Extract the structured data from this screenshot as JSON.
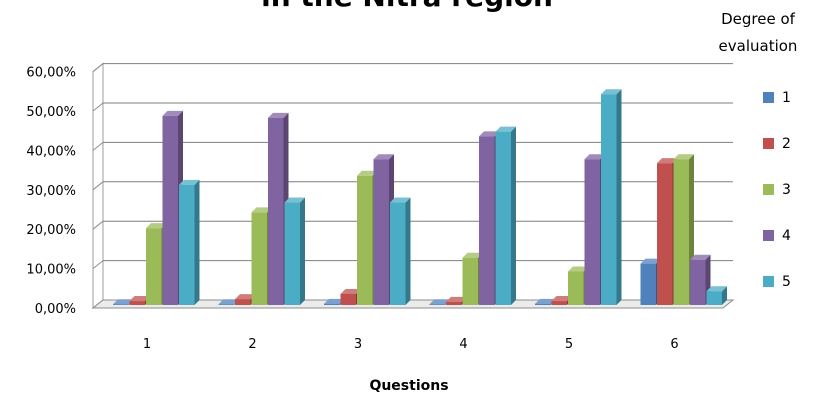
{
  "chart_data": {
    "type": "bar",
    "title": "in the Nitra region",
    "xlabel": "Questions",
    "ylabel": "",
    "categories": [
      "1",
      "2",
      "3",
      "4",
      "5",
      "6"
    ],
    "yticks": [
      "0,00%",
      "10,00%",
      "20,00%",
      "30,00%",
      "40,00%",
      "50,00%",
      "60,00%"
    ],
    "ylim": [
      0,
      60
    ],
    "legend_title": [
      "Degree of",
      "evaluation"
    ],
    "legend_position": "right",
    "grid": true,
    "series": [
      {
        "name": "1",
        "color": "#4f81bd",
        "values": [
          0.2,
          0.2,
          0.3,
          0.2,
          0.3,
          10.5
        ]
      },
      {
        "name": "2",
        "color": "#c0504d",
        "values": [
          1.0,
          1.5,
          2.8,
          0.8,
          1.0,
          36.0
        ]
      },
      {
        "name": "3",
        "color": "#9bbb59",
        "values": [
          19.5,
          23.5,
          32.8,
          12.0,
          8.5,
          37.0
        ]
      },
      {
        "name": "4",
        "color": "#8064a2",
        "values": [
          48.0,
          47.5,
          37.0,
          42.8,
          37.0,
          11.5
        ]
      },
      {
        "name": "5",
        "color": "#4bacc6",
        "values": [
          30.5,
          26.0,
          26.0,
          44.0,
          53.5,
          3.5
        ]
      }
    ]
  }
}
